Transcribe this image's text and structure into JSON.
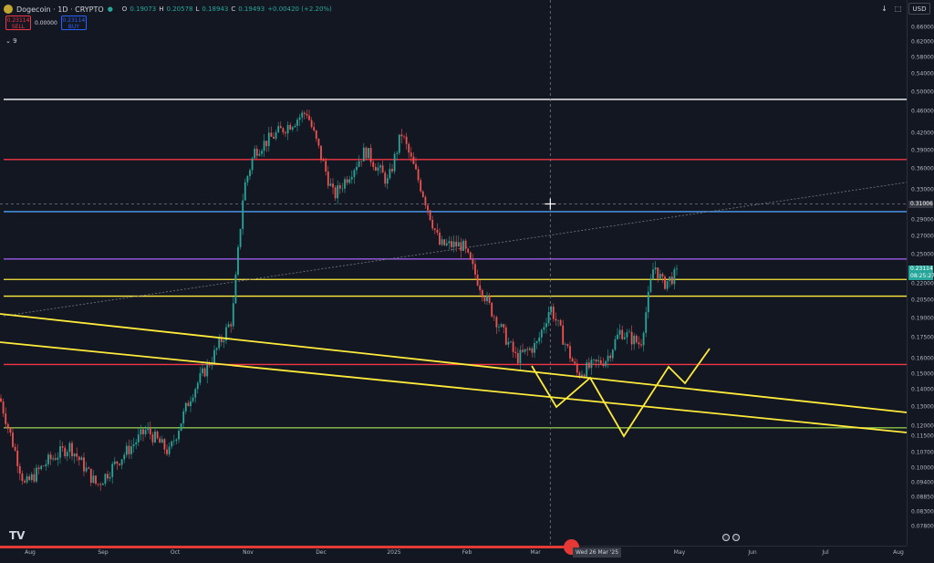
{
  "header": {
    "symbol": "Dogecoin · 1D · CRYPTO",
    "ohlc": [
      {
        "label": "O",
        "value": "0.19073"
      },
      {
        "label": "H",
        "value": "0.20578"
      },
      {
        "label": "L",
        "value": "0.18943"
      },
      {
        "label": "C",
        "value": "0.19493"
      },
      {
        "label": "",
        "value": "+0.00420 (+2.20%)"
      }
    ],
    "sell_price": "0.23114",
    "sell_label": "SELL",
    "spread": "0.00000",
    "buy_price": "0.23114",
    "buy_label": "BUY",
    "indicator_count": "9"
  },
  "currency": "USD",
  "price_axis": [
    "0.66000",
    "0.62000",
    "0.58000",
    "0.54000",
    "0.50000",
    "0.46000",
    "0.42000",
    "0.39000",
    "0.36000",
    "0.33000",
    "0.29000",
    "0.27000",
    "0.25000",
    "0.22000",
    "0.20500",
    "0.19000",
    "0.17500",
    "0.16000",
    "0.15000",
    "0.14000",
    "0.13000",
    "0.12000",
    "0.11500",
    "0.10700",
    "0.10000",
    "0.09400",
    "0.08850",
    "0.08300",
    "0.07800"
  ],
  "crosshair_price": "0.31006",
  "last_price": "0.23114",
  "countdown": "08:25:27",
  "time_axis": [
    "Aug",
    "Sep",
    "Oct",
    "Nov",
    "Dec",
    "2025",
    "Feb",
    "Mar",
    "May",
    "Jun",
    "Jul",
    "Aug"
  ],
  "crosshair_date": "Wed 26 Mar '25",
  "video_progress": 0.611,
  "colors": {
    "background": "#131722",
    "up": "#26a69a",
    "down": "#ef5350",
    "white_line": "#ffffff",
    "red_line": "#f23645",
    "blue_line": "#4d9ef7",
    "purple_line": "#9c5ce6",
    "yellow_line": "#ffeb3b",
    "green_line": "#8bc34a",
    "progress": "#e53935"
  },
  "chart_data": {
    "type": "line",
    "title": "",
    "xlabel": "",
    "ylabel": "",
    "y_scale": "log",
    "ylim": [
      0.078,
      0.66
    ],
    "xlim": [
      "2024-07-25",
      "2025-08-31"
    ],
    "horizontal_levels": [
      {
        "price": 0.485,
        "color": "white"
      },
      {
        "price": 0.375,
        "color": "red"
      },
      {
        "price": 0.3,
        "color": "blue"
      },
      {
        "price": 0.245,
        "color": "purple"
      },
      {
        "price": 0.2245,
        "color": "yellow"
      },
      {
        "price": 0.209,
        "color": "yellow"
      },
      {
        "price": 0.156,
        "color": "red"
      },
      {
        "price": 0.119,
        "color": "green"
      }
    ],
    "close_path": [
      {
        "x": "2024-07-25",
        "y": 0.135
      },
      {
        "x": "2024-08-05",
        "y": 0.093
      },
      {
        "x": "2024-08-15",
        "y": 0.103
      },
      {
        "x": "2024-08-25",
        "y": 0.11
      },
      {
        "x": "2024-09-06",
        "y": 0.093
      },
      {
        "x": "2024-09-15",
        "y": 0.103
      },
      {
        "x": "2024-09-28",
        "y": 0.118
      },
      {
        "x": "2024-10-08",
        "y": 0.107
      },
      {
        "x": "2024-10-18",
        "y": 0.138
      },
      {
        "x": "2024-10-28",
        "y": 0.163
      },
      {
        "x": "2024-11-05",
        "y": 0.19
      },
      {
        "x": "2024-11-10",
        "y": 0.33
      },
      {
        "x": "2024-11-15",
        "y": 0.39
      },
      {
        "x": "2024-11-25",
        "y": 0.42
      },
      {
        "x": "2024-12-08",
        "y": 0.46
      },
      {
        "x": "2024-12-20",
        "y": 0.32
      },
      {
        "x": "2025-01-03",
        "y": 0.39
      },
      {
        "x": "2025-01-13",
        "y": 0.34
      },
      {
        "x": "2025-01-19",
        "y": 0.42
      },
      {
        "x": "2025-01-28",
        "y": 0.33
      },
      {
        "x": "2025-02-05",
        "y": 0.26
      },
      {
        "x": "2025-02-15",
        "y": 0.26
      },
      {
        "x": "2025-02-27",
        "y": 0.2
      },
      {
        "x": "2025-03-11",
        "y": 0.16
      },
      {
        "x": "2025-03-20",
        "y": 0.17
      },
      {
        "x": "2025-03-26",
        "y": 0.2
      },
      {
        "x": "2025-04-07",
        "y": 0.15
      },
      {
        "x": "2025-04-20",
        "y": 0.16
      },
      {
        "x": "2025-04-26",
        "y": 0.18
      },
      {
        "x": "2025-05-05",
        "y": 0.17
      },
      {
        "x": "2025-05-11",
        "y": 0.24
      },
      {
        "x": "2025-05-15",
        "y": 0.22
      },
      {
        "x": "2025-05-22",
        "y": 0.231
      }
    ]
  }
}
